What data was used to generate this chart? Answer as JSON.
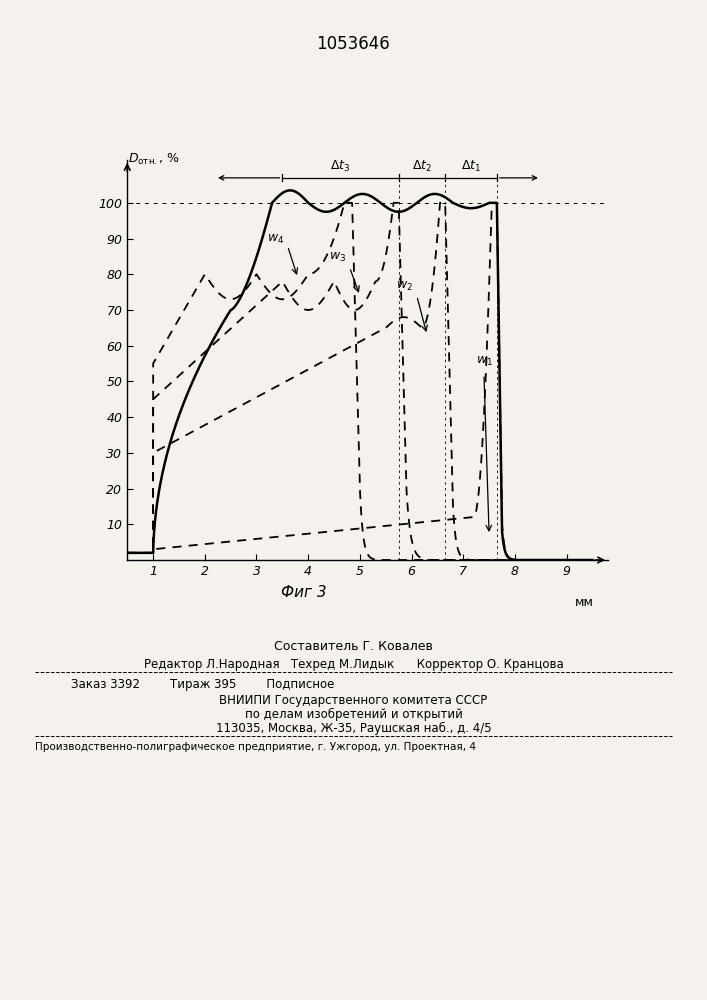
{
  "patent_number": "1053646",
  "fig_label": "Фиг 3",
  "bg_color": "#f5f2ee",
  "xticks": [
    1,
    2,
    3,
    4,
    5,
    6,
    7,
    8,
    9
  ],
  "yticks": [
    10,
    20,
    30,
    40,
    50,
    60,
    70,
    80,
    90,
    100
  ],
  "xlim": [
    0.5,
    9.8
  ],
  "ylim": [
    0,
    112
  ],
  "footer_lines": [
    "Составитель Г. Ковалев",
    "Редактор Л.Народная   Техред М.Лидык      Корректор О. Кранцова",
    "Заказ 3392        Тираж 395        Подписное",
    "ВНИИПИ Государственного комитета СССР",
    "по делам изобретений и открытий",
    "113035, Москва, Ж-35, Раушская наб., д. 4/5",
    "Производственно-полиграфическое предприятие, г. Ужгород, ул. Проектная, 4"
  ]
}
